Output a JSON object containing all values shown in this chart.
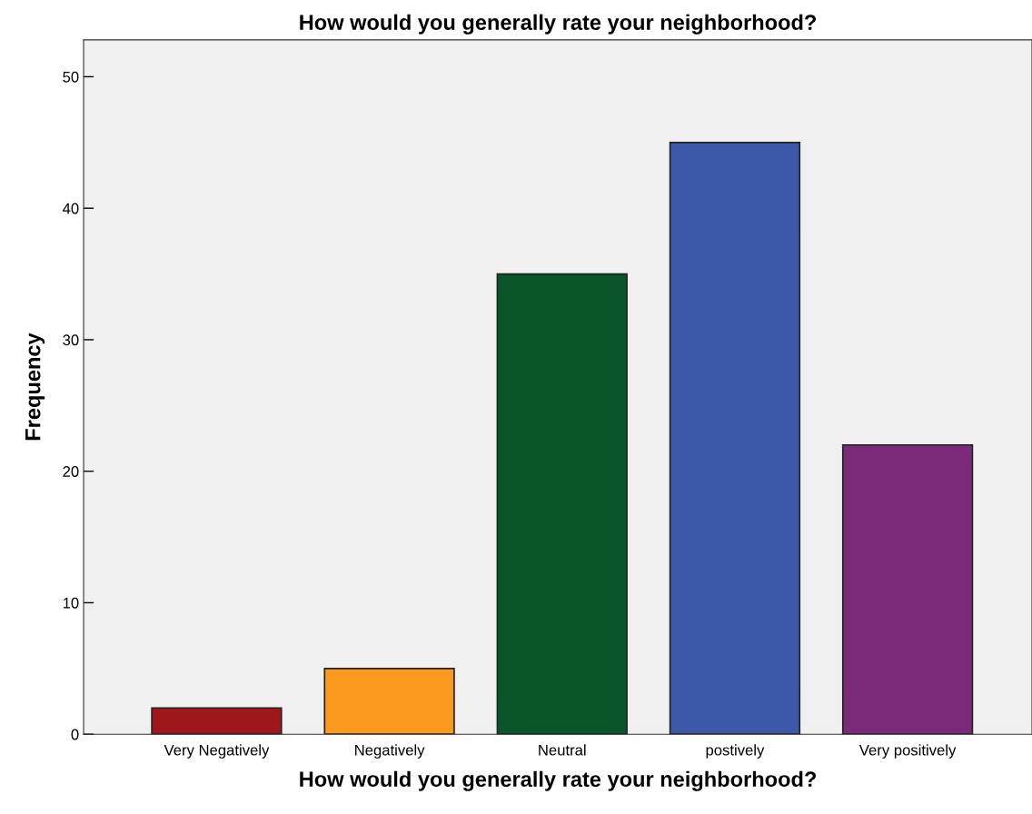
{
  "chart_data": {
    "type": "bar",
    "title": "How would you generally rate your neighborhood?",
    "xlabel": "How would you generally rate your neighborhood?",
    "ylabel": "Frequency",
    "categories": [
      "Very Negatively",
      "Negatively",
      "Neutral",
      "postively",
      "Very positively"
    ],
    "values": [
      2,
      5,
      35,
      45,
      22
    ],
    "colors": [
      "#a0171b",
      "#f99a1f",
      "#0b552b",
      "#3d57a9",
      "#7b2a7a"
    ],
    "ylim": [
      0,
      52.8
    ],
    "yticks": [
      0,
      10,
      20,
      30,
      40,
      50
    ],
    "grid": false
  }
}
